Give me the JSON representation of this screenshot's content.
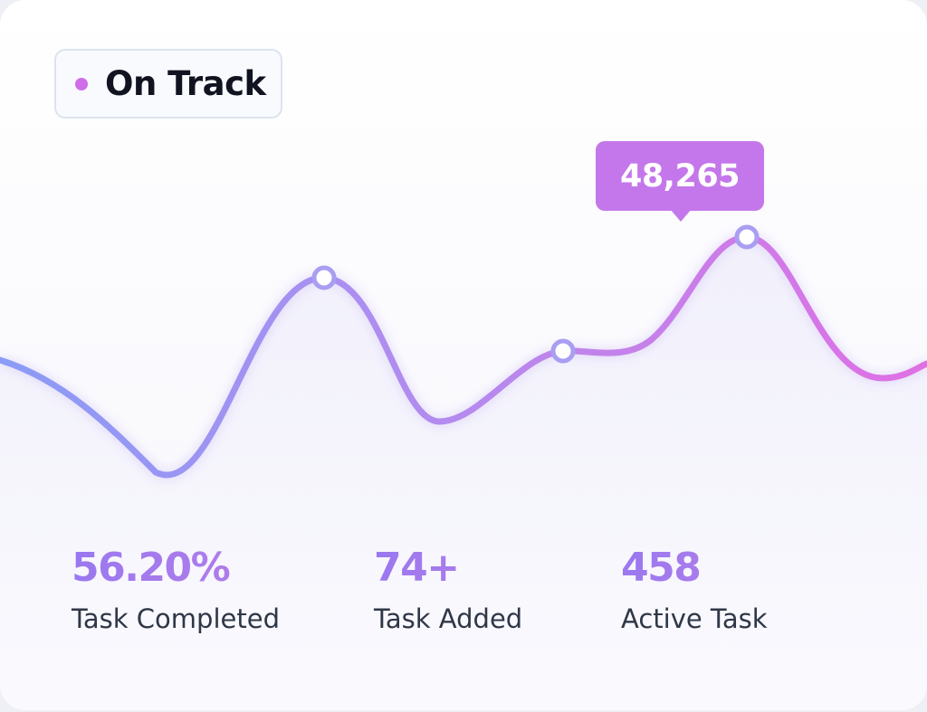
{
  "status": {
    "label": "On Track",
    "dot_color": "#cf6de8"
  },
  "tooltip": {
    "value": "48,265",
    "color": "#c477ea"
  },
  "stats": [
    {
      "value": "56.20%",
      "label": "Task Completed"
    },
    {
      "value": "74+",
      "label": "Task Added"
    },
    {
      "value": "458",
      "label": "Active Task"
    }
  ],
  "colors": {
    "gradient_start": "#8a9cf6",
    "gradient_mid": "#b58aee",
    "gradient_end": "#e070e4",
    "marker_stroke": "#a89ef2",
    "stat_value_start": "#9a78f0",
    "stat_value_end": "#b57ee8"
  }
}
